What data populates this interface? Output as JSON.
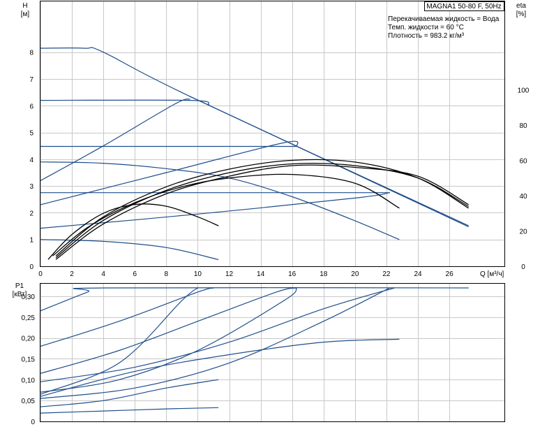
{
  "chart_data": [
    {
      "type": "line",
      "title": "MAGNA1 50-80 F, 50Hz",
      "notes": [
        "Перекачиваемая жидкость = Вода",
        "Темп. жидкости = 60 °C",
        "Плотность = 983.2 кг/м³"
      ],
      "xlabel": "Q [м³/ч]",
      "ylabel": [
        "H",
        "[м]"
      ],
      "y2label": [
        "eta",
        "[%]"
      ],
      "xlim": [
        0,
        29.5
      ],
      "ylim": [
        0,
        9.9
      ],
      "y2lim": [
        0,
        150
      ],
      "xticks": [
        "0",
        "2",
        "4",
        "6",
        "8",
        "10",
        "12",
        "14",
        "16",
        "18",
        "20",
        "22",
        "24",
        "26"
      ],
      "yticks": [
        "0",
        "1",
        "2",
        "3",
        "4",
        "5",
        "6",
        "7",
        "8"
      ],
      "y2ticks": [
        "0",
        "20",
        "40",
        "60",
        "80",
        "100"
      ],
      "grid": true,
      "colors": {
        "pump_curve": "#1f4e8c",
        "efficiency_curve": "#000000"
      },
      "series": [
        {
          "kind": "head",
          "x": [
            0,
            2.8,
            4,
            9.5,
            27.2
          ],
          "y": [
            8.15,
            8.15,
            8.0,
            6.35,
            1.52
          ]
        },
        {
          "kind": "head",
          "x": [
            0,
            9.5,
            10.7
          ],
          "y": [
            6.2,
            6.2,
            6.05
          ]
        },
        {
          "kind": "head",
          "x": [
            0,
            16.3
          ],
          "y": [
            4.48,
            4.48
          ]
        },
        {
          "kind": "head",
          "x": [
            0,
            22.2
          ],
          "y": [
            2.75,
            2.75
          ]
        },
        {
          "kind": "head",
          "x": [
            0,
            4,
            8,
            12,
            16,
            20,
            22.8
          ],
          "y": [
            3.9,
            3.85,
            3.65,
            3.3,
            2.6,
            1.7,
            1.0
          ]
        },
        {
          "kind": "head",
          "x": [
            0,
            4,
            8,
            11.3
          ],
          "y": [
            1.0,
            0.93,
            0.7,
            0.25
          ]
        },
        {
          "kind": "head",
          "x": [
            0,
            4,
            8.5,
            9.5
          ],
          "y": [
            3.2,
            4.5,
            6.05,
            6.25
          ]
        },
        {
          "kind": "head",
          "x": [
            0,
            8,
            15.5,
            16.3
          ],
          "y": [
            2.3,
            3.5,
            4.62,
            4.48
          ]
        },
        {
          "kind": "head",
          "x": [
            0,
            10,
            20,
            22.2
          ],
          "y": [
            1.42,
            1.95,
            2.55,
            2.75
          ]
        },
        {
          "kind": "head",
          "x": [
            9.5,
            16.3,
            27.2
          ],
          "y": [
            6.35,
            4.48,
            1.48
          ]
        },
        {
          "kind": "eta",
          "x": [
            0.5,
            2,
            4,
            6,
            8,
            10,
            11.3
          ],
          "y": [
            4,
            18,
            30,
            35,
            34,
            28,
            23
          ]
        },
        {
          "kind": "eta",
          "x": [
            0.8,
            3,
            6,
            9,
            12,
            16,
            20,
            22.8
          ],
          "y": [
            6,
            22,
            36,
            45,
            50,
            52,
            47,
            33
          ]
        },
        {
          "kind": "eta",
          "x": [
            1,
            4,
            8,
            12,
            16,
            20,
            24,
            27.2
          ],
          "y": [
            6,
            28,
            45,
            55,
            60,
            59,
            50,
            33
          ]
        },
        {
          "kind": "eta",
          "x": [
            1,
            4,
            8,
            12,
            16,
            20,
            24,
            27.2
          ],
          "y": [
            5,
            26,
            43,
            53,
            58,
            57,
            50,
            34
          ]
        },
        {
          "kind": "eta",
          "x": [
            1,
            4,
            8,
            12,
            16,
            20,
            24,
            27.2
          ],
          "y": [
            4,
            24,
            41,
            51,
            57,
            56,
            51,
            35
          ]
        }
      ]
    },
    {
      "type": "line",
      "xlabel": "",
      "ylabel": [
        "P1",
        "[кВт]"
      ],
      "xlim": [
        0,
        29.5
      ],
      "ylim": [
        0,
        0.33
      ],
      "yticks": [
        "0",
        "0,05",
        "0,10",
        "0,15",
        "0,20",
        "0,25",
        "0,30"
      ],
      "grid": true,
      "series": [
        {
          "x": [
            0,
            3,
            4,
            27.2
          ],
          "y": [
            0.265,
            0.31,
            0.32,
            0.32
          ]
        },
        {
          "x": [
            0,
            5,
            10,
            11
          ],
          "y": [
            0.18,
            0.24,
            0.31,
            0.32
          ]
        },
        {
          "x": [
            0,
            5,
            9,
            10
          ],
          "y": [
            0.065,
            0.14,
            0.29,
            0.32
          ]
        },
        {
          "x": [
            0,
            5,
            10,
            15,
            16.3
          ],
          "y": [
            0.115,
            0.17,
            0.24,
            0.31,
            0.32
          ]
        },
        {
          "x": [
            0,
            5,
            10,
            15.5,
            16.3
          ],
          "y": [
            0.07,
            0.1,
            0.17,
            0.29,
            0.32
          ]
        },
        {
          "x": [
            0,
            6,
            12,
            18,
            22.5
          ],
          "y": [
            0.095,
            0.13,
            0.19,
            0.27,
            0.32
          ]
        },
        {
          "x": [
            0,
            6,
            12,
            18,
            22.2
          ],
          "y": [
            0.055,
            0.08,
            0.14,
            0.24,
            0.32
          ]
        },
        {
          "x": [
            0,
            6,
            12,
            18,
            22.8
          ],
          "y": [
            0.06,
            0.12,
            0.16,
            0.19,
            0.197
          ]
        },
        {
          "x": [
            0,
            4,
            8,
            11.3
          ],
          "y": [
            0.035,
            0.05,
            0.08,
            0.1
          ]
        },
        {
          "x": [
            0,
            4,
            8,
            11.3
          ],
          "y": [
            0.02,
            0.025,
            0.03,
            0.033
          ]
        }
      ]
    }
  ]
}
